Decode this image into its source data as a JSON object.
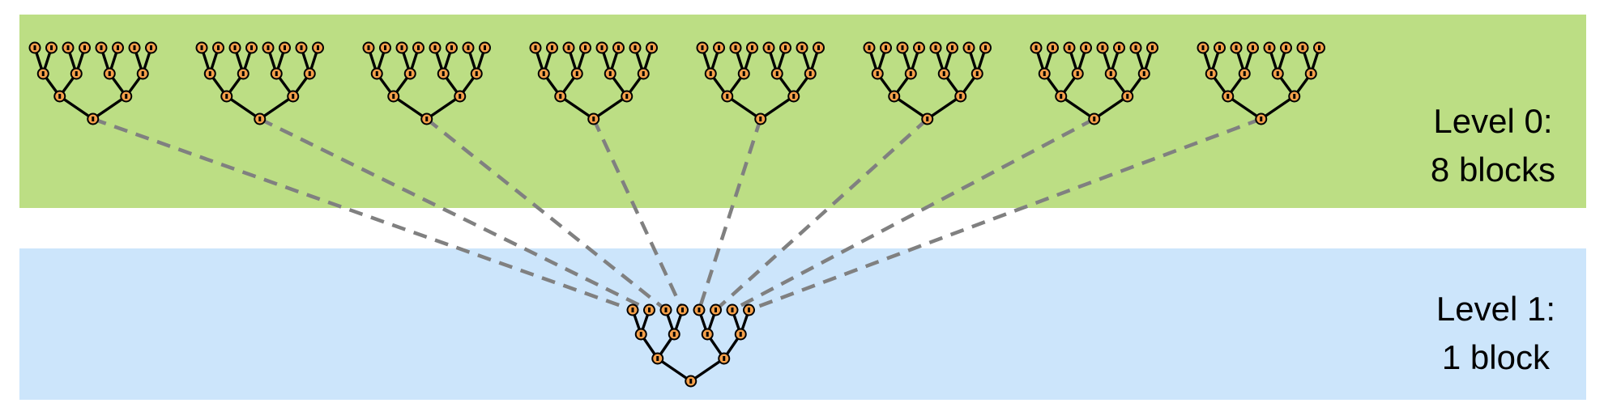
{
  "colors": {
    "level0_band": "#bcde84",
    "level1_band": "#cce5fb",
    "node_fill": "#f5a04a",
    "node_stroke": "#000000",
    "edge": "#000000",
    "connector": "#808080"
  },
  "levels": [
    {
      "label_line1": "Level 0:",
      "label_line2": "8 blocks",
      "block_count": 8
    },
    {
      "label_line1": "Level 1:",
      "label_line2": "1 block",
      "block_count": 1
    }
  ],
  "tree": {
    "leaves_per_block": 8,
    "depth": 3
  },
  "connectors": {
    "style": "dashed",
    "from": "level-0-block-roots",
    "to": "level-1-leaves"
  }
}
